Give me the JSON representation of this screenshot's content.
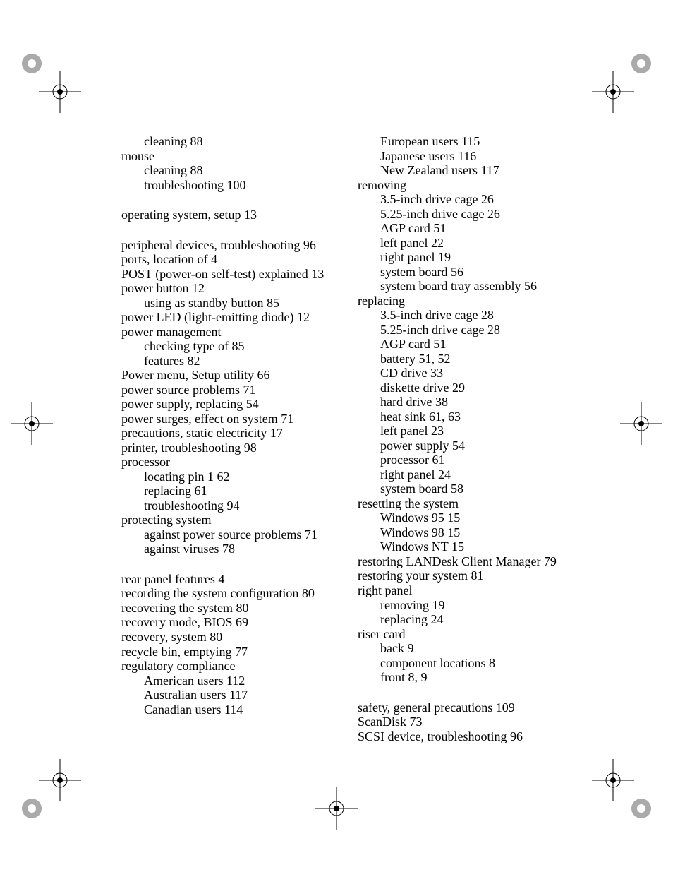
{
  "left_col": [
    {
      "text": "cleaning 88",
      "sub": true
    },
    {
      "text": "mouse"
    },
    {
      "text": "cleaning 88",
      "sub": true
    },
    {
      "text": "troubleshooting 100",
      "sub": true
    },
    {
      "text": "operating system, setup 13",
      "gap": true
    },
    {
      "text": "peripheral devices, troubleshooting 96",
      "gap": true
    },
    {
      "text": "ports, location of 4"
    },
    {
      "text": "POST (power-on self-test) explained 13"
    },
    {
      "text": "power button 12"
    },
    {
      "text": "using as standby button 85",
      "sub": true
    },
    {
      "text": "power LED (light-emitting diode) 12"
    },
    {
      "text": "power management"
    },
    {
      "text": "checking type of 85",
      "sub": true
    },
    {
      "text": "features 82",
      "sub": true
    },
    {
      "text": "Power menu, Setup utility 66"
    },
    {
      "text": "power source problems 71"
    },
    {
      "text": "power supply, replacing 54"
    },
    {
      "text": "power surges, effect on system 71"
    },
    {
      "text": "precautions, static electricity 17"
    },
    {
      "text": "printer, troubleshooting 98"
    },
    {
      "text": "processor"
    },
    {
      "text": "locating pin 1 62",
      "sub": true
    },
    {
      "text": "replacing 61",
      "sub": true
    },
    {
      "text": "troubleshooting 94",
      "sub": true
    },
    {
      "text": "protecting system"
    },
    {
      "text": "against power source problems 71",
      "sub": true
    },
    {
      "text": "against viruses 78",
      "sub": true
    },
    {
      "text": "rear panel features 4",
      "gap": true
    },
    {
      "text": "recording the system configuration 80"
    },
    {
      "text": "recovering the system 80"
    },
    {
      "text": "recovery mode, BIOS 69"
    },
    {
      "text": "recovery, system 80"
    },
    {
      "text": "recycle bin, emptying 77"
    },
    {
      "text": "regulatory compliance"
    },
    {
      "text": "American users 112",
      "sub": true
    },
    {
      "text": "Australian users 117",
      "sub": true
    },
    {
      "text": "Canadian users 114",
      "sub": true
    }
  ],
  "right_col": [
    {
      "text": "European users 115",
      "sub": true
    },
    {
      "text": "Japanese users 116",
      "sub": true
    },
    {
      "text": "New Zealand users 117",
      "sub": true
    },
    {
      "text": "removing"
    },
    {
      "text": "3.5-inch drive cage 26",
      "sub": true
    },
    {
      "text": "5.25-inch drive cage 26",
      "sub": true
    },
    {
      "text": "AGP card 51",
      "sub": true
    },
    {
      "text": "left panel 22",
      "sub": true
    },
    {
      "text": "right panel 19",
      "sub": true
    },
    {
      "text": "system board 56",
      "sub": true
    },
    {
      "text": "system board tray assembly 56",
      "sub": true
    },
    {
      "text": "replacing"
    },
    {
      "text": "3.5-inch drive cage 28",
      "sub": true
    },
    {
      "text": "5.25-inch drive cage 28",
      "sub": true
    },
    {
      "text": "AGP card 51",
      "sub": true
    },
    {
      "text": "battery 51, 52",
      "sub": true
    },
    {
      "text": "CD drive 33",
      "sub": true
    },
    {
      "text": "diskette drive 29",
      "sub": true
    },
    {
      "text": "hard drive 38",
      "sub": true
    },
    {
      "text": "heat sink 61, 63",
      "sub": true
    },
    {
      "text": "left panel 23",
      "sub": true
    },
    {
      "text": "power supply 54",
      "sub": true
    },
    {
      "text": "processor 61",
      "sub": true
    },
    {
      "text": "right panel 24",
      "sub": true
    },
    {
      "text": "system board 58",
      "sub": true
    },
    {
      "text": "resetting the system"
    },
    {
      "text": "Windows 95 15",
      "sub": true
    },
    {
      "text": "Windows 98 15",
      "sub": true
    },
    {
      "text": "Windows NT 15",
      "sub": true
    },
    {
      "text": "restoring LANDesk Client Manager 79"
    },
    {
      "text": "restoring your system 81"
    },
    {
      "text": "right panel"
    },
    {
      "text": "removing 19",
      "sub": true
    },
    {
      "text": "replacing 24",
      "sub": true
    },
    {
      "text": "riser card"
    },
    {
      "text": "back 9",
      "sub": true
    },
    {
      "text": "component locations 8",
      "sub": true
    },
    {
      "text": "front 8, 9",
      "sub": true
    },
    {
      "text": "safety, general precautions 109",
      "gap": true
    },
    {
      "text": "ScanDisk 73"
    },
    {
      "text": "SCSI device, troubleshooting 96"
    }
  ]
}
